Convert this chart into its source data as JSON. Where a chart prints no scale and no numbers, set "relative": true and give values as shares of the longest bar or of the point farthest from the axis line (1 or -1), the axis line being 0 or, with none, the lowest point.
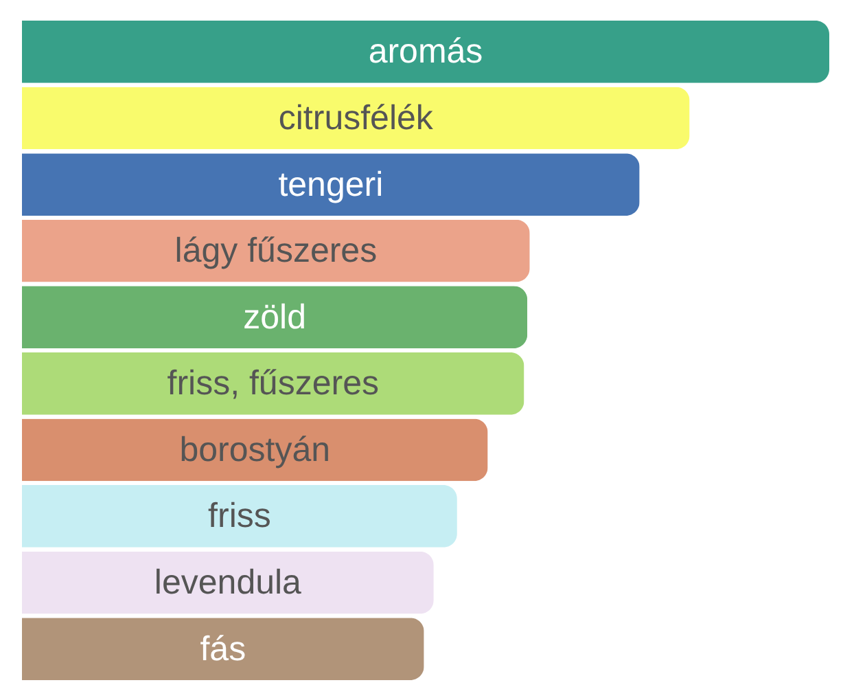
{
  "chart_data": {
    "type": "bar",
    "orientation": "horizontal",
    "relative": true,
    "categories": [
      "aromás",
      "citrusfélék",
      "tengeri",
      "lágy fűszeres",
      "zöld",
      "friss, fűszeres",
      "borostyán",
      "friss",
      "levendula",
      "fás"
    ],
    "values": [
      1,
      0.827,
      0.765,
      0.629,
      0.626,
      0.622,
      0.577,
      0.539,
      0.51,
      0.498
    ],
    "colors": [
      "#37a089",
      "#f9fb6c",
      "#4674b3",
      "#eba38a",
      "#6ab26e",
      "#addb78",
      "#d98f6e",
      "#c6eef3",
      "#eee2f2",
      "#b19479"
    ]
  }
}
